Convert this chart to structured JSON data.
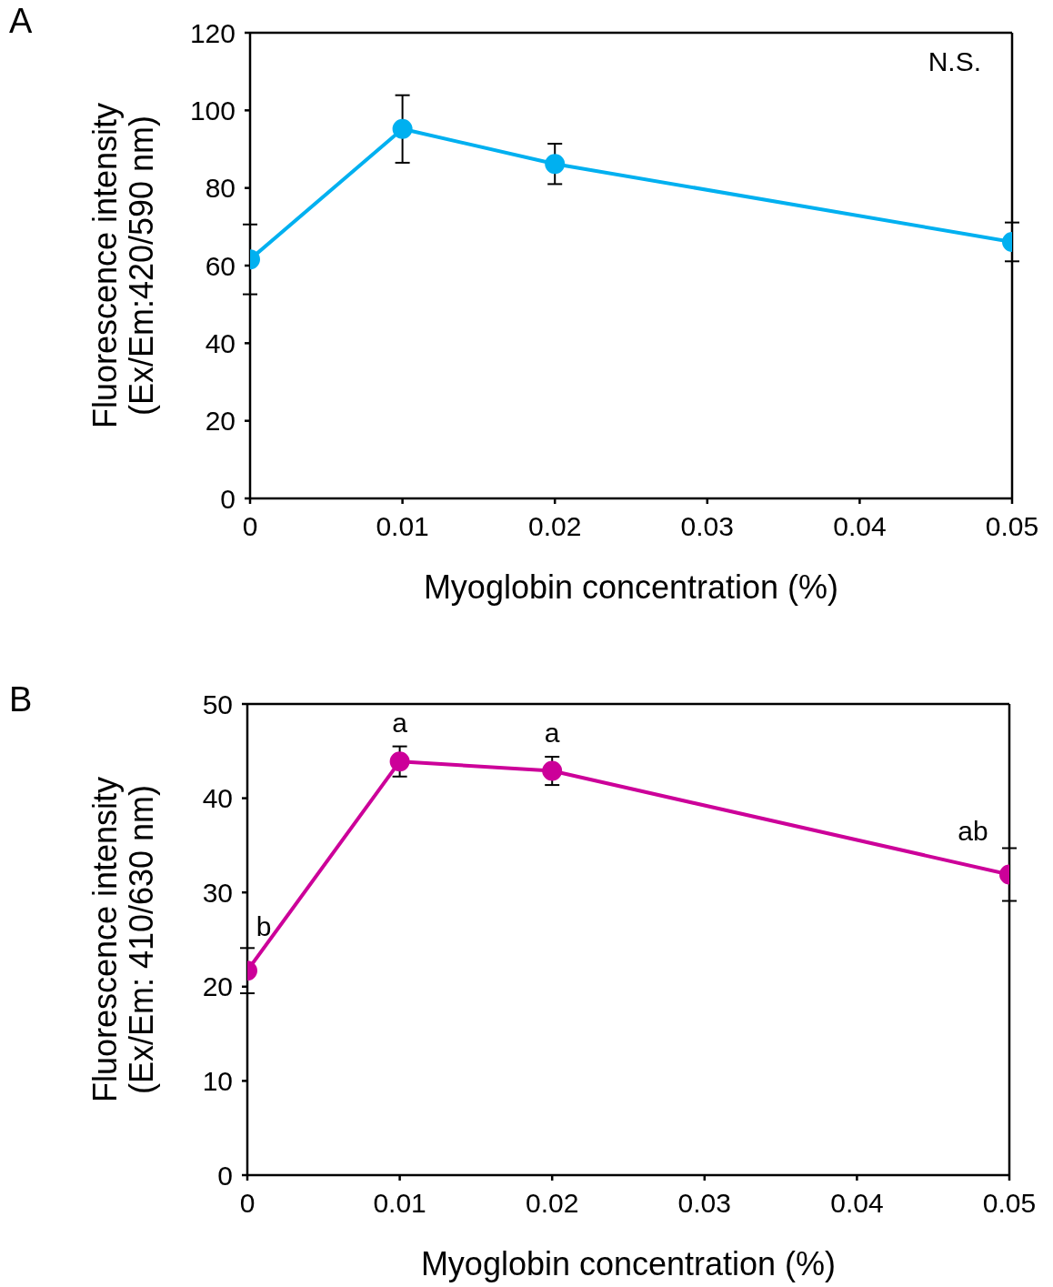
{
  "chart_data": [
    {
      "type": "line",
      "title": "A",
      "xlabel": "Myoglobin concentration (%)",
      "ylabel": "Fluorescence intensity\n(Ex/Em:420/590 nm)",
      "x": [
        0,
        0.01,
        0.02,
        0.05
      ],
      "xlim": [
        0,
        0.05
      ],
      "xticks": [
        0,
        0.01,
        0.02,
        0.03,
        0.04,
        0.05
      ],
      "ylim": [
        0,
        120
      ],
      "yticks": [
        0,
        20,
        40,
        60,
        80,
        100,
        120
      ],
      "marker": "circle",
      "line_style": "solid",
      "series": [
        {
          "color": "#00b0f0",
          "values": [
            61.6,
            95.2,
            86.2,
            66.1
          ],
          "errors": [
            9,
            8.7,
            5.2,
            5
          ]
        }
      ],
      "annotations": [
        "N.S."
      ]
    },
    {
      "type": "line",
      "title": "B",
      "xlabel": "Myoglobin concentration (%)",
      "ylabel": "Fluorescence intensity\n(Ex/Em: 410/630 nm)",
      "x": [
        0,
        0.01,
        0.02,
        0.05
      ],
      "xlim": [
        0,
        0.05
      ],
      "xticks": [
        0,
        0.01,
        0.02,
        0.03,
        0.04,
        0.05
      ],
      "ylim": [
        0,
        50
      ],
      "yticks": [
        0,
        10,
        20,
        30,
        40,
        50
      ],
      "marker": "circle",
      "line_style": "solid",
      "series": [
        {
          "color": "#cc0099",
          "values": [
            21.7,
            43.9,
            42.9,
            31.9
          ],
          "errors": [
            2.4,
            1.6,
            1.5,
            2.8
          ]
        }
      ],
      "annotations": [
        {
          "text": "b",
          "x": 0,
          "y": 21.7
        },
        {
          "text": "a",
          "x": 0.01,
          "y": 43.9
        },
        {
          "text": "a",
          "x": 0.02,
          "y": 42.9
        },
        {
          "text": "ab",
          "x": 0.05,
          "y": 31.9
        }
      ]
    }
  ]
}
